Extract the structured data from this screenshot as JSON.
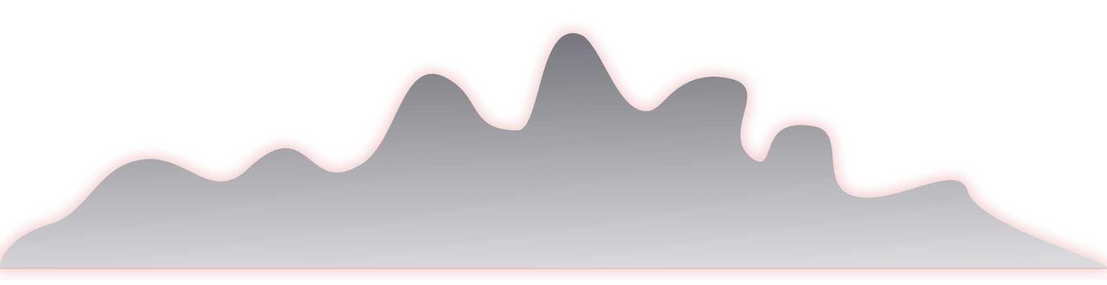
{
  "scene": {
    "background_color": "#ffffff",
    "shape_gradient_top": "#75757d",
    "shape_gradient_bottom": "#dadadd",
    "glow_color": "#e8a4a4"
  }
}
